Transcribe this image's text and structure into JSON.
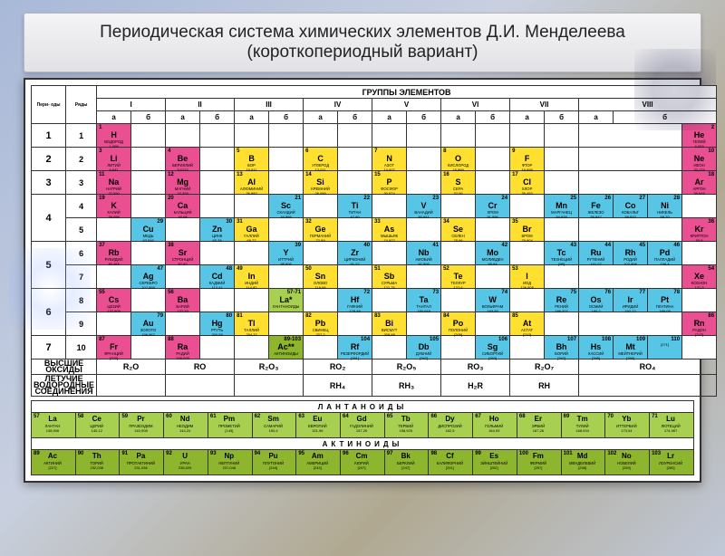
{
  "title": "Периодическая система химических элементов Д.И. Менделеева (короткопериодный вариант)",
  "headers": {
    "groups_title": "ГРУППЫ ЭЛЕМЕНТОВ",
    "periods_label": "Пери-\nоды",
    "rows_label": "Ряды",
    "roman": [
      "I",
      "II",
      "III",
      "IV",
      "V",
      "VI",
      "VII",
      "VIII"
    ],
    "sub": [
      "а",
      "б"
    ]
  },
  "oxides": {
    "label": "ВЫСШИЕ ОКСИДЫ",
    "formulas": [
      "R₂O",
      "RO",
      "R₂O₃",
      "RO₂",
      "R₂O₅",
      "RO₃",
      "R₂O₇",
      "RO₄"
    ]
  },
  "hydrides": {
    "label": "ЛЕТУЧИЕ ВОДОРОДНЫЕ СОЕДИНЕНИЯ",
    "formulas": [
      "",
      "",
      "",
      "RH₄",
      "RH₃",
      "H₂R",
      "RH",
      ""
    ]
  },
  "series": {
    "lanth_title": "ЛАНТАНОИДЫ",
    "actin_title": "АКТИНОИДЫ"
  },
  "colors": {
    "pink": "#e94f91",
    "yellow": "#ffe030",
    "blue": "#57c6e6",
    "lblue": "#8fd9ed",
    "green": "#8db52e",
    "lgreen": "#a8d050",
    "white": "#ffffff",
    "border": "#333333",
    "bg": "#ffffff",
    "title_bg": "#ececee"
  },
  "rows": [
    {
      "period": "1",
      "row": "1",
      "cells": [
        {
          "n": 1,
          "s": "H",
          "nm": "ВОДОРОД",
          "wt": "1,008",
          "c": "pink",
          "pos": 0
        },
        {
          "n": 2,
          "s": "He",
          "nm": "ГЕЛИЙ",
          "wt": "4,003",
          "c": "pink",
          "pos": 17
        }
      ]
    },
    {
      "period": "2",
      "row": "2",
      "cells": [
        {
          "n": 3,
          "s": "Li",
          "nm": "ЛИТИЙ",
          "wt": "6,941",
          "c": "pink",
          "pos": 0
        },
        {
          "n": 4,
          "s": "Be",
          "nm": "БЕРИЛЛИЙ",
          "wt": "9,0122",
          "c": "pink",
          "pos": 2
        },
        {
          "n": 5,
          "s": "B",
          "nm": "БОР",
          "wt": "10,811",
          "c": "yellow",
          "pos": 4
        },
        {
          "n": 6,
          "s": "C",
          "nm": "УГЛЕРОД",
          "wt": "12,011",
          "c": "yellow",
          "pos": 6
        },
        {
          "n": 7,
          "s": "N",
          "nm": "АЗОТ",
          "wt": "14,007",
          "c": "yellow",
          "pos": 8
        },
        {
          "n": 8,
          "s": "O",
          "nm": "КИСЛОРОД",
          "wt": "15,999",
          "c": "yellow",
          "pos": 10
        },
        {
          "n": 9,
          "s": "F",
          "nm": "ФТОР",
          "wt": "18,998",
          "c": "yellow",
          "pos": 12
        },
        {
          "n": 10,
          "s": "Ne",
          "nm": "НЕОН",
          "wt": "20,179",
          "c": "pink",
          "pos": 17
        }
      ]
    },
    {
      "period": "3",
      "row": "3",
      "cells": [
        {
          "n": 11,
          "s": "Na",
          "nm": "НАТРИЙ",
          "wt": "22,990",
          "c": "pink",
          "pos": 0
        },
        {
          "n": 12,
          "s": "Mg",
          "nm": "МАГНИЙ",
          "wt": "24,305",
          "c": "pink",
          "pos": 2
        },
        {
          "n": 13,
          "s": "Al",
          "nm": "АЛЮМИНИЙ",
          "wt": "26,982",
          "c": "yellow",
          "pos": 4
        },
        {
          "n": 14,
          "s": "Si",
          "nm": "КРЕМНИЙ",
          "wt": "28,086",
          "c": "yellow",
          "pos": 6
        },
        {
          "n": 15,
          "s": "P",
          "nm": "ФОСФОР",
          "wt": "30,974",
          "c": "yellow",
          "pos": 8
        },
        {
          "n": 16,
          "s": "S",
          "nm": "СЕРА",
          "wt": "32,06",
          "c": "yellow",
          "pos": 10
        },
        {
          "n": 17,
          "s": "Cl",
          "nm": "ХЛОР",
          "wt": "35,453",
          "c": "yellow",
          "pos": 12
        },
        {
          "n": 18,
          "s": "Ar",
          "nm": "АРГОН",
          "wt": "39,948",
          "c": "pink",
          "pos": 17
        }
      ]
    },
    {
      "period": "4",
      "row": "4",
      "cells": [
        {
          "n": 19,
          "s": "K",
          "nm": "КАЛИЙ",
          "wt": "39,098",
          "c": "pink",
          "pos": 0
        },
        {
          "n": 20,
          "s": "Ca",
          "nm": "КАЛЬЦИЙ",
          "wt": "40,08",
          "c": "pink",
          "pos": 2
        },
        {
          "n": 21,
          "s": "Sc",
          "nm": "СКАНДИЙ",
          "wt": "44,956",
          "c": "blue",
          "pos": 5
        },
        {
          "n": 22,
          "s": "Ti",
          "nm": "ТИТАН",
          "wt": "47,90",
          "c": "blue",
          "pos": 7
        },
        {
          "n": 23,
          "s": "V",
          "nm": "ВАНАДИЙ",
          "wt": "50,941",
          "c": "blue",
          "pos": 9
        },
        {
          "n": 24,
          "s": "Cr",
          "nm": "ХРОМ",
          "wt": "51,996",
          "c": "blue",
          "pos": 11
        },
        {
          "n": 25,
          "s": "Mn",
          "nm": "МАРГАНЕЦ",
          "wt": "54,938",
          "c": "blue",
          "pos": 13
        },
        {
          "n": 26,
          "s": "Fe",
          "nm": "ЖЕЛЕЗО",
          "wt": "55,847",
          "c": "blue",
          "pos": 14
        },
        {
          "n": 27,
          "s": "Co",
          "nm": "КОБАЛЬТ",
          "wt": "58,933",
          "c": "blue",
          "pos": 15
        },
        {
          "n": 28,
          "s": "Ni",
          "nm": "НИКЕЛЬ",
          "wt": "58,70",
          "c": "blue",
          "pos": 16
        }
      ]
    },
    {
      "period": "4",
      "row": "5",
      "cells": [
        {
          "n": 29,
          "s": "Cu",
          "nm": "МЕДЬ",
          "wt": "63,546",
          "c": "blue",
          "pos": 1
        },
        {
          "n": 30,
          "s": "Zn",
          "nm": "ЦИНК",
          "wt": "65,38",
          "c": "blue",
          "pos": 3
        },
        {
          "n": 31,
          "s": "Ga",
          "nm": "ГАЛЛИЙ",
          "wt": "69,72",
          "c": "yellow",
          "pos": 4
        },
        {
          "n": 32,
          "s": "Ge",
          "nm": "ГЕРМАНИЙ",
          "wt": "72,59",
          "c": "yellow",
          "pos": 6
        },
        {
          "n": 33,
          "s": "As",
          "nm": "МЫШЬЯК",
          "wt": "74,922",
          "c": "yellow",
          "pos": 8
        },
        {
          "n": 34,
          "s": "Se",
          "nm": "СЕЛЕН",
          "wt": "78,96",
          "c": "yellow",
          "pos": 10
        },
        {
          "n": 35,
          "s": "Br",
          "nm": "БРОМ",
          "wt": "79,904",
          "c": "yellow",
          "pos": 12
        },
        {
          "n": 36,
          "s": "Kr",
          "nm": "КРИПТОН",
          "wt": "83,8",
          "c": "pink",
          "pos": 17
        }
      ]
    },
    {
      "period": "5",
      "row": "6",
      "cells": [
        {
          "n": 37,
          "s": "Rb",
          "nm": "РУБИДИЙ",
          "wt": "85,468",
          "c": "pink",
          "pos": 0
        },
        {
          "n": 38,
          "s": "Sr",
          "nm": "СТРОНЦИЙ",
          "wt": "87,62",
          "c": "pink",
          "pos": 2
        },
        {
          "n": 39,
          "s": "Y",
          "nm": "ИТТРИЙ",
          "wt": "88,906",
          "c": "blue",
          "pos": 5
        },
        {
          "n": 40,
          "s": "Zr",
          "nm": "ЦИРКОНИЙ",
          "wt": "91,22",
          "c": "blue",
          "pos": 7
        },
        {
          "n": 41,
          "s": "Nb",
          "nm": "НИОБИЙ",
          "wt": "92,906",
          "c": "blue",
          "pos": 9
        },
        {
          "n": 42,
          "s": "Mo",
          "nm": "МОЛИБДЕН",
          "wt": "95,94",
          "c": "blue",
          "pos": 11
        },
        {
          "n": 43,
          "s": "Tc",
          "nm": "ТЕХНЕЦИЙ",
          "wt": "[98]",
          "c": "blue",
          "pos": 13
        },
        {
          "n": 44,
          "s": "Ru",
          "nm": "РУТЕНИЙ",
          "wt": "101,07",
          "c": "blue",
          "pos": 14
        },
        {
          "n": 45,
          "s": "Rh",
          "nm": "РОДИЙ",
          "wt": "102,906",
          "c": "blue",
          "pos": 15
        },
        {
          "n": 46,
          "s": "Pd",
          "nm": "ПАЛЛАДИЙ",
          "wt": "106,4",
          "c": "blue",
          "pos": 16
        }
      ]
    },
    {
      "period": "5",
      "row": "7",
      "cells": [
        {
          "n": 47,
          "s": "Ag",
          "nm": "СЕРЕБРО",
          "wt": "107,868",
          "c": "blue",
          "pos": 1
        },
        {
          "n": 48,
          "s": "Cd",
          "nm": "КАДМИЙ",
          "wt": "112,41",
          "c": "blue",
          "pos": 3
        },
        {
          "n": 49,
          "s": "In",
          "nm": "ИНДИЙ",
          "wt": "114,82",
          "c": "yellow",
          "pos": 4
        },
        {
          "n": 50,
          "s": "Sn",
          "nm": "ОЛОВО",
          "wt": "118,69",
          "c": "yellow",
          "pos": 6
        },
        {
          "n": 51,
          "s": "Sb",
          "nm": "СУРЬМА",
          "wt": "121,75",
          "c": "yellow",
          "pos": 8
        },
        {
          "n": 52,
          "s": "Te",
          "nm": "ТЕЛЛУР",
          "wt": "127,6",
          "c": "yellow",
          "pos": 10
        },
        {
          "n": 53,
          "s": "I",
          "nm": "ИОД",
          "wt": "126,905",
          "c": "yellow",
          "pos": 12
        },
        {
          "n": 54,
          "s": "Xe",
          "nm": "КСЕНОН",
          "wt": "131,3",
          "c": "pink",
          "pos": 17
        }
      ]
    },
    {
      "period": "6",
      "row": "8",
      "cells": [
        {
          "n": 55,
          "s": "Cs",
          "nm": "ЦЕЗИЙ",
          "wt": "132,905",
          "c": "pink",
          "pos": 0
        },
        {
          "n": 56,
          "s": "Ba",
          "nm": "БАРИЙ",
          "wt": "137,33",
          "c": "pink",
          "pos": 2
        },
        {
          "n": "57-71",
          "s": "La*",
          "nm": "ЛАНТАНОИДЫ",
          "wt": "",
          "c": "lgreen",
          "pos": 5
        },
        {
          "n": 72,
          "s": "Hf",
          "nm": "ГАФНИЙ",
          "wt": "178,49",
          "c": "blue",
          "pos": 7
        },
        {
          "n": 73,
          "s": "Ta",
          "nm": "ТАНТАЛ",
          "wt": "180,948",
          "c": "blue",
          "pos": 9
        },
        {
          "n": 74,
          "s": "W",
          "nm": "ВОЛЬФРАМ",
          "wt": "183,85",
          "c": "blue",
          "pos": 11
        },
        {
          "n": 75,
          "s": "Re",
          "nm": "РЕНИЙ",
          "wt": "186,207",
          "c": "blue",
          "pos": 13
        },
        {
          "n": 76,
          "s": "Os",
          "nm": "ОСМИЙ",
          "wt": "190,2",
          "c": "blue",
          "pos": 14
        },
        {
          "n": 77,
          "s": "Ir",
          "nm": "ИРИДИЙ",
          "wt": "192,22",
          "c": "blue",
          "pos": 15
        },
        {
          "n": 78,
          "s": "Pt",
          "nm": "ПЛАТИНА",
          "wt": "195,09",
          "c": "blue",
          "pos": 16
        }
      ]
    },
    {
      "period": "6",
      "row": "9",
      "cells": [
        {
          "n": 79,
          "s": "Au",
          "nm": "ЗОЛОТО",
          "wt": "196,967",
          "c": "blue",
          "pos": 1
        },
        {
          "n": 80,
          "s": "Hg",
          "nm": "РТУТЬ",
          "wt": "200,59",
          "c": "blue",
          "pos": 3
        },
        {
          "n": 81,
          "s": "Tl",
          "nm": "ТАЛЛИЙ",
          "wt": "204,37",
          "c": "yellow",
          "pos": 4
        },
        {
          "n": 82,
          "s": "Pb",
          "nm": "СВИНЕЦ",
          "wt": "207,2",
          "c": "yellow",
          "pos": 6
        },
        {
          "n": 83,
          "s": "Bi",
          "nm": "ВИСМУТ",
          "wt": "208,98",
          "c": "yellow",
          "pos": 8
        },
        {
          "n": 84,
          "s": "Po",
          "nm": "ПОЛОНИЙ",
          "wt": "[209]",
          "c": "yellow",
          "pos": 10
        },
        {
          "n": 85,
          "s": "At",
          "nm": "АСТАТ",
          "wt": "[210]",
          "c": "yellow",
          "pos": 12
        },
        {
          "n": 86,
          "s": "Rn",
          "nm": "РАДОН",
          "wt": "[222]",
          "c": "pink",
          "pos": 17
        }
      ]
    },
    {
      "period": "7",
      "row": "10",
      "cells": [
        {
          "n": 87,
          "s": "Fr",
          "nm": "ФРАНЦИЙ",
          "wt": "[223]",
          "c": "pink",
          "pos": 0
        },
        {
          "n": 88,
          "s": "Ra",
          "nm": "РАДИЙ",
          "wt": "226,025",
          "c": "pink",
          "pos": 2
        },
        {
          "n": "89-103",
          "s": "Ac**",
          "nm": "АКТИНОИДЫ",
          "wt": "",
          "c": "green",
          "pos": 5
        },
        {
          "n": 104,
          "s": "Rf",
          "nm": "РЕЗЕРФОРДИЙ",
          "wt": "[261]",
          "c": "blue",
          "pos": 7
        },
        {
          "n": 105,
          "s": "Db",
          "nm": "ДУБНИЙ",
          "wt": "[262]",
          "c": "blue",
          "pos": 9
        },
        {
          "n": 106,
          "s": "Sg",
          "nm": "СИБОРГИЙ",
          "wt": "[263]",
          "c": "blue",
          "pos": 11
        },
        {
          "n": 107,
          "s": "Bh",
          "nm": "БОРИЙ",
          "wt": "[262]",
          "c": "blue",
          "pos": 13
        },
        {
          "n": 108,
          "s": "Hs",
          "nm": "ХАССИЙ",
          "wt": "[265]",
          "c": "blue",
          "pos": 14
        },
        {
          "n": 109,
          "s": "Mt",
          "nm": "МЕЙТНЕРИЙ",
          "wt": "[266]",
          "c": "blue",
          "pos": 15
        },
        {
          "n": 110,
          "s": "",
          "nm": "",
          "wt": "[271]",
          "c": "blue",
          "pos": 16
        }
      ]
    }
  ],
  "lanth": [
    {
      "n": 57,
      "s": "La",
      "nm": "ЛАНТАН",
      "wt": "138,906"
    },
    {
      "n": 58,
      "s": "Ce",
      "nm": "ЦЕРИЙ",
      "wt": "140,12"
    },
    {
      "n": 59,
      "s": "Pr",
      "nm": "ПРАЗЕОДИМ",
      "wt": "140,908"
    },
    {
      "n": 60,
      "s": "Nd",
      "nm": "НЕОДИМ",
      "wt": "144,24"
    },
    {
      "n": 61,
      "s": "Pm",
      "nm": "ПРОМЕТИЙ",
      "wt": "[145]"
    },
    {
      "n": 62,
      "s": "Sm",
      "nm": "САМАРИЙ",
      "wt": "150,4"
    },
    {
      "n": 63,
      "s": "Eu",
      "nm": "ЕВРОПИЙ",
      "wt": "151,96"
    },
    {
      "n": 64,
      "s": "Gd",
      "nm": "ГАДОЛИНИЙ",
      "wt": "157,25"
    },
    {
      "n": 65,
      "s": "Tb",
      "nm": "ТЕРБИЙ",
      "wt": "158,925"
    },
    {
      "n": 66,
      "s": "Dy",
      "nm": "ДИСПРОЗИЙ",
      "wt": "162,5"
    },
    {
      "n": 67,
      "s": "Ho",
      "nm": "ГОЛЬМИЙ",
      "wt": "164,93"
    },
    {
      "n": 68,
      "s": "Er",
      "nm": "ЭРБИЙ",
      "wt": "167,26"
    },
    {
      "n": 69,
      "s": "Tm",
      "nm": "ТУЛИЙ",
      "wt": "168,934"
    },
    {
      "n": 70,
      "s": "Yb",
      "nm": "ИТТЕРБИЙ",
      "wt": "173,04"
    },
    {
      "n": 71,
      "s": "Lu",
      "nm": "ЛЮТЕЦИЙ",
      "wt": "174,967"
    }
  ],
  "actin": [
    {
      "n": 89,
      "s": "Ac",
      "nm": "АКТИНИЙ",
      "wt": "[227]"
    },
    {
      "n": 90,
      "s": "Th",
      "nm": "ТОРИЙ",
      "wt": "232,038"
    },
    {
      "n": 91,
      "s": "Pa",
      "nm": "ПРОТАКТИНИЙ",
      "wt": "231,036"
    },
    {
      "n": 92,
      "s": "U",
      "nm": "УРАН",
      "wt": "238,029"
    },
    {
      "n": 93,
      "s": "Np",
      "nm": "НЕПТУНИЙ",
      "wt": "237,048"
    },
    {
      "n": 94,
      "s": "Pu",
      "nm": "ПЛУТОНИЙ",
      "wt": "[244]"
    },
    {
      "n": 95,
      "s": "Am",
      "nm": "АМЕРИЦИЙ",
      "wt": "[243]"
    },
    {
      "n": 96,
      "s": "Cm",
      "nm": "КЮРИЙ",
      "wt": "[247]"
    },
    {
      "n": 97,
      "s": "Bk",
      "nm": "БЕРКЛИЙ",
      "wt": "[247]"
    },
    {
      "n": 98,
      "s": "Cf",
      "nm": "КАЛИФОРНИЙ",
      "wt": "[251]"
    },
    {
      "n": 99,
      "s": "Es",
      "nm": "ЭЙНШТЕЙНИЙ",
      "wt": "[252]"
    },
    {
      "n": 100,
      "s": "Fm",
      "nm": "ФЕРМИЙ",
      "wt": "[257]"
    },
    {
      "n": 101,
      "s": "Md",
      "nm": "МЕНДЕЛЕВИЙ",
      "wt": "[258]"
    },
    {
      "n": 102,
      "s": "No",
      "nm": "НОБЕЛИЙ",
      "wt": "[259]"
    },
    {
      "n": 103,
      "s": "Lr",
      "nm": "ЛОУРЕНСИЙ",
      "wt": "[260]"
    }
  ]
}
